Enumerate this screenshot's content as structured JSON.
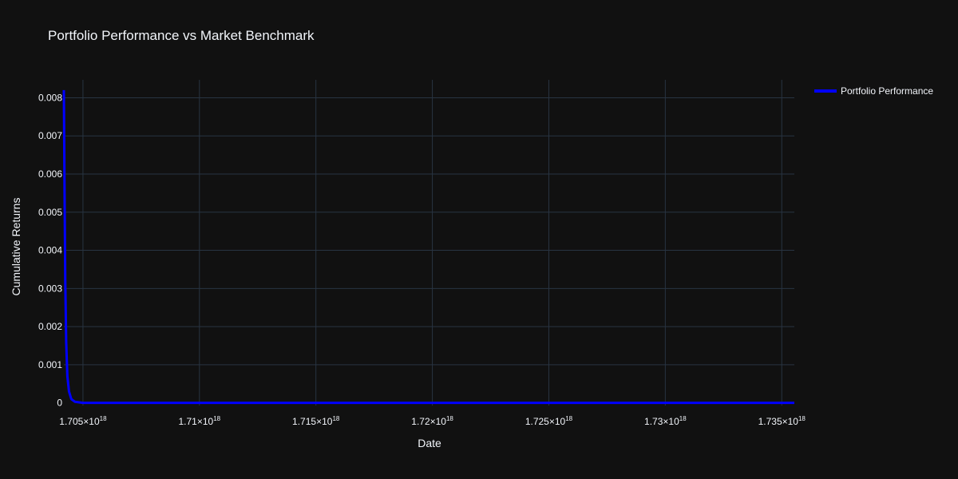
{
  "chart_data": {
    "type": "line",
    "title": "Portfolio Performance vs Market Benchmark",
    "xlabel": "Date",
    "ylabel": "Cumulative Returns",
    "x_ticks": [
      {
        "value": 1.705,
        "mantissa": "1.705",
        "exp": "18"
      },
      {
        "value": 1.71,
        "mantissa": "1.71",
        "exp": "18"
      },
      {
        "value": 1.715,
        "mantissa": "1.715",
        "exp": "18"
      },
      {
        "value": 1.72,
        "mantissa": "1.72",
        "exp": "18"
      },
      {
        "value": 1.725,
        "mantissa": "1.725",
        "exp": "18"
      },
      {
        "value": 1.73,
        "mantissa": "1.73",
        "exp": "18"
      },
      {
        "value": 1.735,
        "mantissa": "1.735",
        "exp": "18"
      }
    ],
    "x_tick_multiplier": "×10",
    "y_ticks": [
      {
        "value": 0,
        "label": "0"
      },
      {
        "value": 0.001,
        "label": "0.001"
      },
      {
        "value": 0.002,
        "label": "0.002"
      },
      {
        "value": 0.003,
        "label": "0.003"
      },
      {
        "value": 0.004,
        "label": "0.004"
      },
      {
        "value": 0.005,
        "label": "0.005"
      },
      {
        "value": 0.006,
        "label": "0.006"
      },
      {
        "value": 0.007,
        "label": "0.007"
      },
      {
        "value": 0.008,
        "label": "0.008"
      }
    ],
    "xlim": [
      1.70418,
      1.73554
    ],
    "ylim": [
      -7e-05,
      0.00847
    ],
    "grid": true,
    "legend_position": "top-right",
    "series": [
      {
        "name": "Portfolio Performance",
        "color": "#0000ff",
        "points": [
          [
            1.70418,
            0.0082
          ],
          [
            1.70421,
            0.0055
          ],
          [
            1.70424,
            0.0032
          ],
          [
            1.70428,
            0.0016
          ],
          [
            1.70433,
            0.0007
          ],
          [
            1.7044,
            0.0003
          ],
          [
            1.7045,
            0.0001
          ],
          [
            1.70465,
            3e-05
          ],
          [
            1.705,
            0.0
          ],
          [
            1.71,
            0.0
          ],
          [
            1.72,
            0.0
          ],
          [
            1.73,
            0.0
          ],
          [
            1.73554,
            0.0
          ]
        ]
      }
    ]
  }
}
